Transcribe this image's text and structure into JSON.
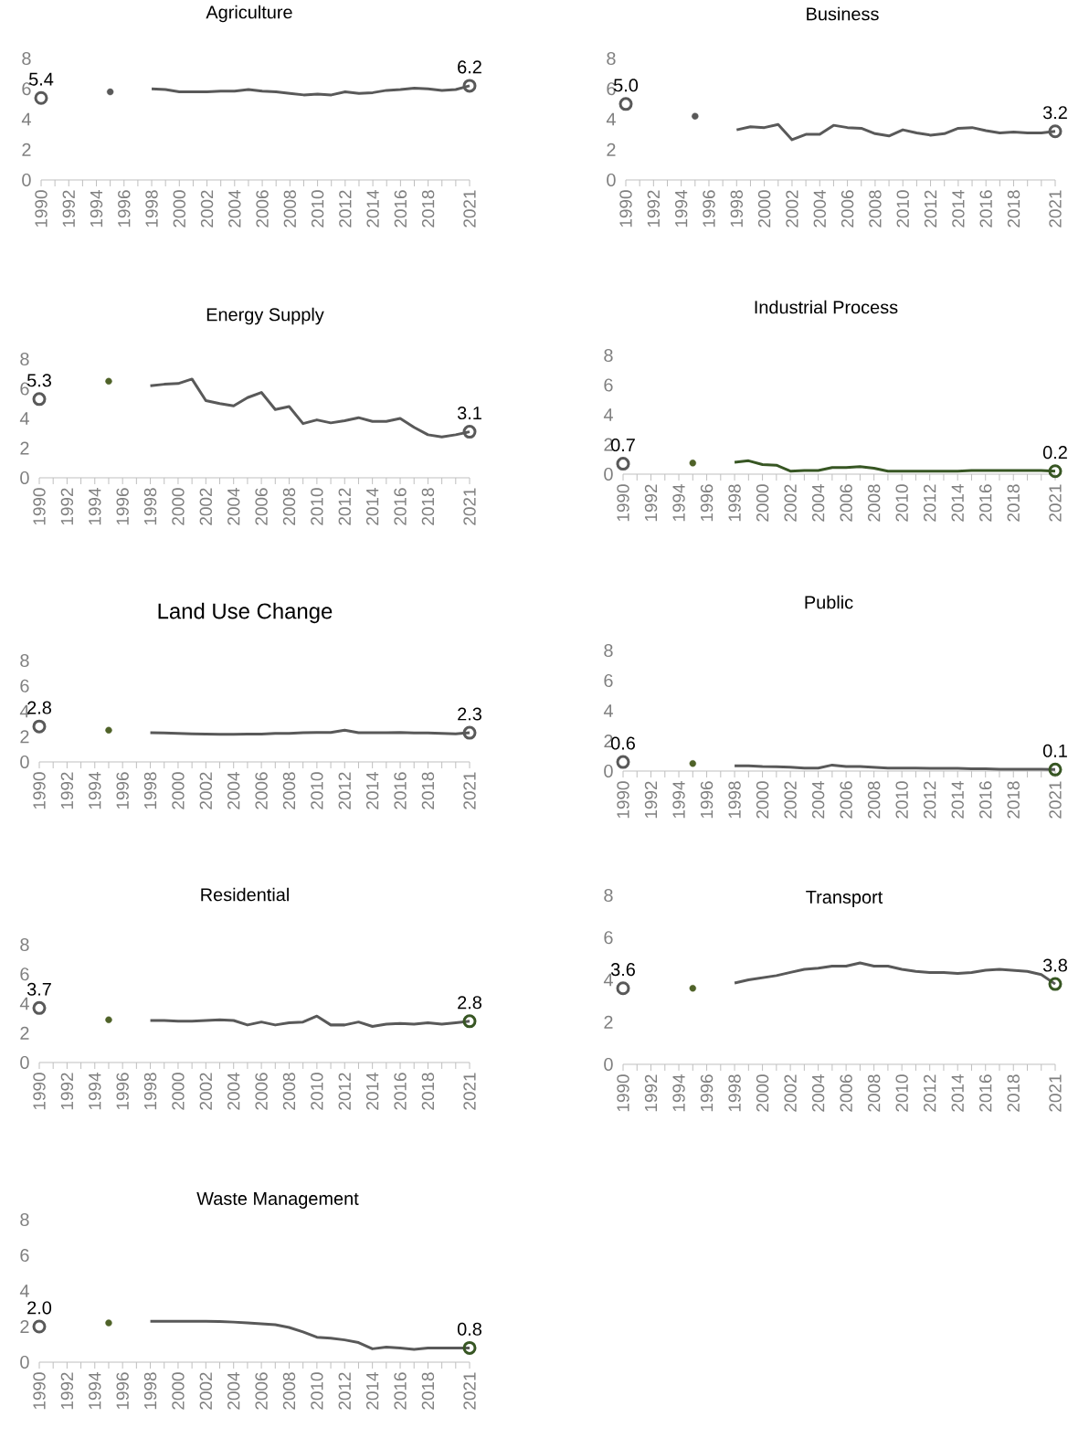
{
  "chart_data": [
    {
      "type": "line",
      "title": "Agriculture",
      "xlim": [
        1990,
        2021
      ],
      "ylim": [
        0,
        8
      ],
      "yticks": [
        0,
        2,
        4,
        6,
        8
      ],
      "xticks": [
        1990,
        {
          "value": 1991,
          "label": null
        },
        1992,
        {
          "value": 1993,
          "label": null
        },
        1994,
        {
          "value": 1995,
          "label": null
        },
        1996,
        {
          "value": 1997,
          "label": null
        },
        1998,
        {
          "value": 1999,
          "label": null
        },
        2000,
        {
          "value": 2001,
          "label": null
        },
        2002,
        {
          "value": 2003,
          "label": null
        },
        2004,
        {
          "value": 2005,
          "label": null
        },
        2006,
        {
          "value": 2007,
          "label": null
        },
        2008,
        {
          "value": 2009,
          "label": null
        },
        2010,
        {
          "value": 2011,
          "label": null
        },
        2012,
        {
          "value": 2013,
          "label": null
        },
        2014,
        {
          "value": 2015,
          "label": null
        },
        2016,
        {
          "value": 2017,
          "label": null
        },
        2018,
        {
          "value": 2019,
          "label": null
        },
        {
          "value": 2020,
          "label": null
        },
        2021
      ],
      "series": [
        {
          "type": "scatter",
          "marker": "circle",
          "x": [
            1990
          ],
          "values": [
            5.4
          ],
          "color": "#595959",
          "value_labels": [
            "5.4"
          ]
        },
        {
          "type": "scatter",
          "marker": "circle",
          "x": [
            1995
          ],
          "values": [
            5.8
          ],
          "color": "#595959"
        },
        {
          "type": "line",
          "x": [
            1998,
            1999,
            2000,
            2001,
            2002,
            2003,
            2004,
            2005,
            2006,
            2007,
            2008,
            2009,
            2010,
            2011,
            2012,
            2013,
            2014,
            2015,
            2016,
            2017,
            2018,
            2019,
            2020,
            2021
          ],
          "values": [
            6.0,
            5.95,
            5.8,
            5.8,
            5.8,
            5.85,
            5.85,
            5.95,
            5.85,
            5.8,
            5.7,
            5.6,
            5.65,
            5.6,
            5.8,
            5.7,
            5.75,
            5.9,
            5.95,
            6.05,
            6.0,
            5.9,
            5.95,
            6.2
          ],
          "color": "#595959"
        },
        {
          "type": "scatter",
          "marker": "circle",
          "x": [
            2021
          ],
          "values": [
            6.2
          ],
          "color": "#595959",
          "value_labels": [
            "6.2"
          ]
        }
      ]
    },
    {
      "type": "line",
      "title": "Business",
      "xlim": [
        1990,
        2021
      ],
      "ylim": [
        0,
        8
      ],
      "yticks": [
        0,
        2,
        4,
        6,
        8
      ],
      "xticks": [
        1990,
        {
          "value": 1991,
          "label": null
        },
        1992,
        {
          "value": 1993,
          "label": null
        },
        1994,
        {
          "value": 1995,
          "label": null
        },
        1996,
        {
          "value": 1997,
          "label": null
        },
        1998,
        {
          "value": 1999,
          "label": null
        },
        2000,
        {
          "value": 2001,
          "label": null
        },
        2002,
        {
          "value": 2003,
          "label": null
        },
        2004,
        {
          "value": 2005,
          "label": null
        },
        2006,
        {
          "value": 2007,
          "label": null
        },
        2008,
        {
          "value": 2009,
          "label": null
        },
        2010,
        {
          "value": 2011,
          "label": null
        },
        2012,
        {
          "value": 2013,
          "label": null
        },
        2014,
        {
          "value": 2015,
          "label": null
        },
        2016,
        {
          "value": 2017,
          "label": null
        },
        2018,
        {
          "value": 2019,
          "label": null
        },
        {
          "value": 2020,
          "label": null
        },
        2021
      ],
      "series": [
        {
          "type": "scatter",
          "marker": "circle",
          "x": [
            1990
          ],
          "values": [
            5.0
          ],
          "color": "#595959",
          "value_labels": [
            "5.0"
          ]
        },
        {
          "type": "scatter",
          "marker": "circle",
          "x": [
            1995
          ],
          "values": [
            4.2
          ],
          "color": "#595959"
        },
        {
          "type": "line",
          "x": [
            1998,
            1999,
            2000,
            2001,
            2002,
            2003,
            2004,
            2005,
            2006,
            2007,
            2008,
            2009,
            2010,
            2011,
            2012,
            2013,
            2014,
            2015,
            2016,
            2017,
            2018,
            2019,
            2020,
            2021
          ],
          "values": [
            3.3,
            3.5,
            3.45,
            3.65,
            2.65,
            3.0,
            3.0,
            3.6,
            3.45,
            3.4,
            3.05,
            2.9,
            3.3,
            3.1,
            2.95,
            3.05,
            3.4,
            3.45,
            3.25,
            3.1,
            3.15,
            3.1,
            3.1,
            3.2
          ],
          "color": "#595959"
        },
        {
          "type": "scatter",
          "marker": "circle",
          "x": [
            2021
          ],
          "values": [
            3.2
          ],
          "color": "#595959",
          "value_labels": [
            "3.2"
          ]
        }
      ]
    },
    {
      "type": "line",
      "title": "Energy Supply",
      "xlim": [
        1990,
        2021
      ],
      "ylim": [
        0,
        8
      ],
      "yticks": [
        0,
        2,
        4,
        6,
        8
      ],
      "xticks": [
        1990,
        {
          "value": 1991,
          "label": null
        },
        1992,
        {
          "value": 1993,
          "label": null
        },
        1994,
        {
          "value": 1995,
          "label": null
        },
        1996,
        {
          "value": 1997,
          "label": null
        },
        1998,
        {
          "value": 1999,
          "label": null
        },
        2000,
        {
          "value": 2001,
          "label": null
        },
        2002,
        {
          "value": 2003,
          "label": null
        },
        2004,
        {
          "value": 2005,
          "label": null
        },
        2006,
        {
          "value": 2007,
          "label": null
        },
        2008,
        {
          "value": 2009,
          "label": null
        },
        2010,
        {
          "value": 2011,
          "label": null
        },
        2012,
        {
          "value": 2013,
          "label": null
        },
        2014,
        {
          "value": 2015,
          "label": null
        },
        2016,
        {
          "value": 2017,
          "label": null
        },
        2018,
        {
          "value": 2019,
          "label": null
        },
        {
          "value": 2020,
          "label": null
        },
        2021
      ],
      "series": [
        {
          "type": "scatter",
          "marker": "circle",
          "x": [
            1990
          ],
          "values": [
            5.3
          ],
          "color": "#595959",
          "value_labels": [
            "5.3"
          ]
        },
        {
          "type": "scatter",
          "marker": "circle",
          "x": [
            1995
          ],
          "values": [
            6.5
          ],
          "color": "#4f6228"
        },
        {
          "type": "line",
          "x": [
            1998,
            1999,
            2000,
            2001,
            2002,
            2003,
            2004,
            2005,
            2006,
            2007,
            2008,
            2009,
            2010,
            2011,
            2012,
            2013,
            2014,
            2015,
            2016,
            2017,
            2018,
            2019,
            2020,
            2021
          ],
          "values": [
            6.2,
            6.3,
            6.35,
            6.65,
            5.2,
            5.0,
            4.85,
            5.4,
            5.75,
            4.6,
            4.8,
            3.65,
            3.9,
            3.7,
            3.85,
            4.05,
            3.8,
            3.8,
            4.0,
            3.4,
            2.9,
            2.75,
            2.9,
            3.1
          ],
          "color": "#595959"
        },
        {
          "type": "scatter",
          "marker": "circle",
          "x": [
            2021
          ],
          "values": [
            3.1
          ],
          "color": "#595959",
          "value_labels": [
            "3.1"
          ]
        }
      ]
    },
    {
      "type": "line",
      "title": "Industrial Process",
      "xlim": [
        1990,
        2021
      ],
      "ylim": [
        0,
        8
      ],
      "yticks": [
        0,
        2,
        4,
        6,
        8
      ],
      "xticks": [
        1990,
        {
          "value": 1991,
          "label": null
        },
        1992,
        {
          "value": 1993,
          "label": null
        },
        1994,
        {
          "value": 1995,
          "label": null
        },
        1996,
        {
          "value": 1997,
          "label": null
        },
        1998,
        {
          "value": 1999,
          "label": null
        },
        2000,
        {
          "value": 2001,
          "label": null
        },
        2002,
        {
          "value": 2003,
          "label": null
        },
        2004,
        {
          "value": 2005,
          "label": null
        },
        2006,
        {
          "value": 2007,
          "label": null
        },
        2008,
        {
          "value": 2009,
          "label": null
        },
        2010,
        {
          "value": 2011,
          "label": null
        },
        2012,
        {
          "value": 2013,
          "label": null
        },
        2014,
        {
          "value": 2015,
          "label": null
        },
        2016,
        {
          "value": 2017,
          "label": null
        },
        2018,
        {
          "value": 2019,
          "label": null
        },
        {
          "value": 2020,
          "label": null
        },
        2021
      ],
      "series": [
        {
          "type": "scatter",
          "marker": "circle",
          "x": [
            1990
          ],
          "values": [
            0.7
          ],
          "color": "#595959",
          "value_labels": [
            "0.7"
          ]
        },
        {
          "type": "scatter",
          "marker": "circle",
          "x": [
            1995
          ],
          "values": [
            0.75
          ],
          "color": "#4f6228"
        },
        {
          "type": "line",
          "x": [
            1998,
            1999,
            2000,
            2001,
            2002,
            2003,
            2004,
            2005,
            2006,
            2007,
            2008,
            2009,
            2010,
            2011,
            2012,
            2013,
            2014,
            2015,
            2016,
            2017,
            2018,
            2019,
            2020,
            2021
          ],
          "values": [
            0.8,
            0.9,
            0.65,
            0.6,
            0.2,
            0.25,
            0.25,
            0.45,
            0.45,
            0.5,
            0.4,
            0.2,
            0.2,
            0.2,
            0.2,
            0.2,
            0.2,
            0.25,
            0.25,
            0.25,
            0.25,
            0.25,
            0.25,
            0.2
          ],
          "color": "#375623"
        },
        {
          "type": "scatter",
          "marker": "circle",
          "x": [
            2021
          ],
          "values": [
            0.2
          ],
          "color": "#375623",
          "value_labels": [
            "0.2"
          ]
        }
      ]
    },
    {
      "type": "line",
      "title": "Land Use Change",
      "xlim": [
        1990,
        2021
      ],
      "ylim": [
        0,
        8
      ],
      "yticks": [
        0,
        2,
        4,
        6,
        8
      ],
      "xticks": [
        1990,
        {
          "value": 1991,
          "label": null
        },
        1992,
        {
          "value": 1993,
          "label": null
        },
        1994,
        {
          "value": 1995,
          "label": null
        },
        1996,
        {
          "value": 1997,
          "label": null
        },
        1998,
        {
          "value": 1999,
          "label": null
        },
        2000,
        {
          "value": 2001,
          "label": null
        },
        2002,
        {
          "value": 2003,
          "label": null
        },
        2004,
        {
          "value": 2005,
          "label": null
        },
        2006,
        {
          "value": 2007,
          "label": null
        },
        2008,
        {
          "value": 2009,
          "label": null
        },
        2010,
        {
          "value": 2011,
          "label": null
        },
        2012,
        {
          "value": 2013,
          "label": null
        },
        2014,
        {
          "value": 2015,
          "label": null
        },
        2016,
        {
          "value": 2017,
          "label": null
        },
        2018,
        {
          "value": 2019,
          "label": null
        },
        {
          "value": 2020,
          "label": null
        },
        2021
      ],
      "series": [
        {
          "type": "scatter",
          "marker": "circle",
          "x": [
            1990
          ],
          "values": [
            2.8
          ],
          "color": "#595959",
          "value_labels": [
            "2.8"
          ]
        },
        {
          "type": "scatter",
          "marker": "circle",
          "x": [
            1995
          ],
          "values": [
            2.5
          ],
          "color": "#4f6228"
        },
        {
          "type": "line",
          "x": [
            1998,
            1999,
            2000,
            2001,
            2002,
            2003,
            2004,
            2005,
            2006,
            2007,
            2008,
            2009,
            2010,
            2011,
            2012,
            2013,
            2014,
            2015,
            2016,
            2017,
            2018,
            2019,
            2020,
            2021
          ],
          "values": [
            2.3,
            2.28,
            2.25,
            2.22,
            2.2,
            2.18,
            2.18,
            2.2,
            2.2,
            2.25,
            2.25,
            2.3,
            2.32,
            2.32,
            2.5,
            2.3,
            2.3,
            2.3,
            2.32,
            2.28,
            2.28,
            2.25,
            2.22,
            2.3
          ],
          "color": "#595959"
        },
        {
          "type": "scatter",
          "marker": "circle",
          "x": [
            2021
          ],
          "values": [
            2.3
          ],
          "color": "#595959",
          "value_labels": [
            "2.3"
          ]
        }
      ]
    },
    {
      "type": "line",
      "title": "Public",
      "xlim": [
        1990,
        2021
      ],
      "ylim": [
        0,
        8
      ],
      "yticks": [
        0,
        2,
        4,
        6,
        8
      ],
      "xticks": [
        1990,
        {
          "value": 1991,
          "label": null
        },
        1992,
        {
          "value": 1993,
          "label": null
        },
        1994,
        {
          "value": 1995,
          "label": null
        },
        1996,
        {
          "value": 1997,
          "label": null
        },
        1998,
        {
          "value": 1999,
          "label": null
        },
        2000,
        {
          "value": 2001,
          "label": null
        },
        2002,
        {
          "value": 2003,
          "label": null
        },
        2004,
        {
          "value": 2005,
          "label": null
        },
        2006,
        {
          "value": 2007,
          "label": null
        },
        2008,
        {
          "value": 2009,
          "label": null
        },
        2010,
        {
          "value": 2011,
          "label": null
        },
        2012,
        {
          "value": 2013,
          "label": null
        },
        2014,
        {
          "value": 2015,
          "label": null
        },
        2016,
        {
          "value": 2017,
          "label": null
        },
        2018,
        {
          "value": 2019,
          "label": null
        },
        {
          "value": 2020,
          "label": null
        },
        2021
      ],
      "series": [
        {
          "type": "scatter",
          "marker": "circle",
          "x": [
            1990
          ],
          "values": [
            0.6
          ],
          "color": "#595959",
          "value_labels": [
            "0.6"
          ]
        },
        {
          "type": "scatter",
          "marker": "circle",
          "x": [
            1995
          ],
          "values": [
            0.5
          ],
          "color": "#4f6228"
        },
        {
          "type": "line",
          "x": [
            1998,
            1999,
            2000,
            2001,
            2002,
            2003,
            2004,
            2005,
            2006,
            2007,
            2008,
            2009,
            2010,
            2011,
            2012,
            2013,
            2014,
            2015,
            2016,
            2017,
            2018,
            2019,
            2020,
            2021
          ],
          "values": [
            0.35,
            0.35,
            0.3,
            0.28,
            0.25,
            0.2,
            0.2,
            0.4,
            0.3,
            0.3,
            0.25,
            0.2,
            0.2,
            0.2,
            0.18,
            0.18,
            0.18,
            0.15,
            0.15,
            0.12,
            0.12,
            0.12,
            0.12,
            0.1
          ],
          "color": "#595959"
        },
        {
          "type": "scatter",
          "marker": "circle",
          "x": [
            2021
          ],
          "values": [
            0.1
          ],
          "color": "#375623",
          "value_labels": [
            "0.1"
          ]
        }
      ]
    },
    {
      "type": "line",
      "title": "Residential",
      "xlim": [
        1990,
        2021
      ],
      "ylim": [
        0,
        8
      ],
      "yticks": [
        0,
        2,
        4,
        6,
        8
      ],
      "xticks": [
        1990,
        {
          "value": 1991,
          "label": null
        },
        1992,
        {
          "value": 1993,
          "label": null
        },
        1994,
        {
          "value": 1995,
          "label": null
        },
        1996,
        {
          "value": 1997,
          "label": null
        },
        1998,
        {
          "value": 1999,
          "label": null
        },
        2000,
        {
          "value": 2001,
          "label": null
        },
        2002,
        {
          "value": 2003,
          "label": null
        },
        2004,
        {
          "value": 2005,
          "label": null
        },
        2006,
        {
          "value": 2007,
          "label": null
        },
        2008,
        {
          "value": 2009,
          "label": null
        },
        2010,
        {
          "value": 2011,
          "label": null
        },
        2012,
        {
          "value": 2013,
          "label": null
        },
        2014,
        {
          "value": 2015,
          "label": null
        },
        2016,
        {
          "value": 2017,
          "label": null
        },
        2018,
        {
          "value": 2019,
          "label": null
        },
        {
          "value": 2020,
          "label": null
        },
        2021
      ],
      "series": [
        {
          "type": "scatter",
          "marker": "circle",
          "x": [
            1990
          ],
          "values": [
            3.7
          ],
          "color": "#595959",
          "value_labels": [
            "3.7"
          ]
        },
        {
          "type": "scatter",
          "marker": "circle",
          "x": [
            1995
          ],
          "values": [
            2.9
          ],
          "color": "#4f6228"
        },
        {
          "type": "line",
          "x": [
            1998,
            1999,
            2000,
            2001,
            2002,
            2003,
            2004,
            2005,
            2006,
            2007,
            2008,
            2009,
            2010,
            2011,
            2012,
            2013,
            2014,
            2015,
            2016,
            2017,
            2018,
            2019,
            2020,
            2021
          ],
          "values": [
            2.85,
            2.85,
            2.8,
            2.8,
            2.85,
            2.9,
            2.85,
            2.55,
            2.75,
            2.55,
            2.7,
            2.75,
            3.15,
            2.55,
            2.55,
            2.75,
            2.45,
            2.6,
            2.65,
            2.6,
            2.7,
            2.6,
            2.7,
            2.8
          ],
          "color": "#595959"
        },
        {
          "type": "scatter",
          "marker": "circle",
          "x": [
            2021
          ],
          "values": [
            2.8
          ],
          "color": "#375623",
          "value_labels": [
            "2.8"
          ]
        }
      ]
    },
    {
      "type": "line",
      "title": "Transport",
      "xlim": [
        1990,
        2021
      ],
      "ylim": [
        0,
        8
      ],
      "yticks": [
        0,
        2,
        4,
        6,
        8
      ],
      "xticks": [
        1990,
        {
          "value": 1991,
          "label": null
        },
        1992,
        {
          "value": 1993,
          "label": null
        },
        1994,
        {
          "value": 1995,
          "label": null
        },
        1996,
        {
          "value": 1997,
          "label": null
        },
        1998,
        {
          "value": 1999,
          "label": null
        },
        2000,
        {
          "value": 2001,
          "label": null
        },
        2002,
        {
          "value": 2003,
          "label": null
        },
        2004,
        {
          "value": 2005,
          "label": null
        },
        2006,
        {
          "value": 2007,
          "label": null
        },
        2008,
        {
          "value": 2009,
          "label": null
        },
        2010,
        {
          "value": 2011,
          "label": null
        },
        2012,
        {
          "value": 2013,
          "label": null
        },
        2014,
        {
          "value": 2015,
          "label": null
        },
        2016,
        {
          "value": 2017,
          "label": null
        },
        2018,
        {
          "value": 2019,
          "label": null
        },
        {
          "value": 2020,
          "label": null
        },
        2021
      ],
      "series": [
        {
          "type": "scatter",
          "marker": "circle",
          "x": [
            1990
          ],
          "values": [
            3.6
          ],
          "color": "#595959",
          "value_labels": [
            "3.6"
          ]
        },
        {
          "type": "scatter",
          "marker": "circle",
          "x": [
            1995
          ],
          "values": [
            3.6
          ],
          "color": "#4f6228"
        },
        {
          "type": "line",
          "x": [
            1998,
            1999,
            2000,
            2001,
            2002,
            2003,
            2004,
            2005,
            2006,
            2007,
            2008,
            2009,
            2010,
            2011,
            2012,
            2013,
            2014,
            2015,
            2016,
            2017,
            2018,
            2019,
            2020,
            2021
          ],
          "values": [
            3.85,
            4.0,
            4.1,
            4.2,
            4.35,
            4.5,
            4.55,
            4.65,
            4.65,
            4.8,
            4.65,
            4.65,
            4.5,
            4.4,
            4.35,
            4.35,
            4.3,
            4.35,
            4.45,
            4.5,
            4.45,
            4.4,
            4.25,
            3.8
          ],
          "color": "#595959"
        },
        {
          "type": "scatter",
          "marker": "circle",
          "x": [
            2021
          ],
          "values": [
            3.8
          ],
          "color": "#375623",
          "value_labels": [
            "3.8"
          ]
        }
      ]
    },
    {
      "type": "line",
      "title": "Waste Management",
      "xlim": [
        1990,
        2021
      ],
      "ylim": [
        0,
        8
      ],
      "yticks": [
        0,
        2,
        4,
        6,
        8
      ],
      "xticks": [
        1990,
        {
          "value": 1991,
          "label": null
        },
        1992,
        {
          "value": 1993,
          "label": null
        },
        1994,
        {
          "value": 1995,
          "label": null
        },
        1996,
        {
          "value": 1997,
          "label": null
        },
        1998,
        {
          "value": 1999,
          "label": null
        },
        2000,
        {
          "value": 2001,
          "label": null
        },
        2002,
        {
          "value": 2003,
          "label": null
        },
        2004,
        {
          "value": 2005,
          "label": null
        },
        2006,
        {
          "value": 2007,
          "label": null
        },
        2008,
        {
          "value": 2009,
          "label": null
        },
        2010,
        {
          "value": 2011,
          "label": null
        },
        2012,
        {
          "value": 2013,
          "label": null
        },
        2014,
        {
          "value": 2015,
          "label": null
        },
        2016,
        {
          "value": 2017,
          "label": null
        },
        2018,
        {
          "value": 2019,
          "label": null
        },
        {
          "value": 2020,
          "label": null
        },
        2021
      ],
      "series": [
        {
          "type": "scatter",
          "marker": "circle",
          "x": [
            1990
          ],
          "values": [
            2.0
          ],
          "color": "#595959",
          "value_labels": [
            "2.0"
          ]
        },
        {
          "type": "scatter",
          "marker": "circle",
          "x": [
            1995
          ],
          "values": [
            2.2
          ],
          "color": "#4f6228"
        },
        {
          "type": "line",
          "x": [
            1998,
            1999,
            2000,
            2001,
            2002,
            2003,
            2004,
            2005,
            2006,
            2007,
            2008,
            2009,
            2010,
            2011,
            2012,
            2013,
            2014,
            2015,
            2016,
            2017,
            2018,
            2019,
            2020,
            2021
          ],
          "values": [
            2.3,
            2.3,
            2.3,
            2.3,
            2.3,
            2.28,
            2.25,
            2.2,
            2.15,
            2.1,
            1.95,
            1.7,
            1.4,
            1.35,
            1.25,
            1.1,
            0.75,
            0.85,
            0.8,
            0.72,
            0.8,
            0.8,
            0.8,
            0.8
          ],
          "color": "#595959"
        },
        {
          "type": "scatter",
          "marker": "circle",
          "x": [
            2021
          ],
          "values": [
            0.8
          ],
          "color": "#375623",
          "value_labels": [
            "0.8"
          ]
        }
      ]
    }
  ]
}
